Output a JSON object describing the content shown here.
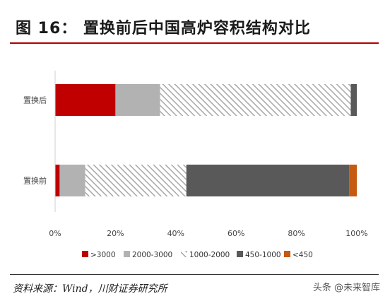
{
  "title": "图 16：  置换前后中国高炉容积结构对比",
  "source": "资料来源：Wind，川财证券研究所",
  "watermark": "头条 @未来智库",
  "chart_data": {
    "type": "bar",
    "orientation": "horizontal",
    "stacked": true,
    "percent": true,
    "categories": [
      "置换后",
      "置换前"
    ],
    "series": [
      {
        "name": ">3000",
        "values": [
          20,
          1.5
        ],
        "color": "#c00000",
        "pattern": "solid"
      },
      {
        "name": "2000-3000",
        "values": [
          14.8,
          8.5
        ],
        "color": "#b2b2b2",
        "pattern": "solid"
      },
      {
        "name": "1000-2000",
        "values": [
          63.2,
          33.5
        ],
        "color": "#c8c8c8",
        "pattern": "hatch"
      },
      {
        "name": "450-1000",
        "values": [
          2,
          54
        ],
        "color": "#595959",
        "pattern": "solid"
      },
      {
        "name": "<450",
        "values": [
          0,
          2.5
        ],
        "color": "#c55a11",
        "pattern": "solid"
      }
    ],
    "x_ticks": [
      "0%",
      "20%",
      "40%",
      "60%",
      "80%",
      "100%"
    ],
    "xlim": [
      0,
      100
    ],
    "legend_position": "bottom",
    "grid": false
  }
}
